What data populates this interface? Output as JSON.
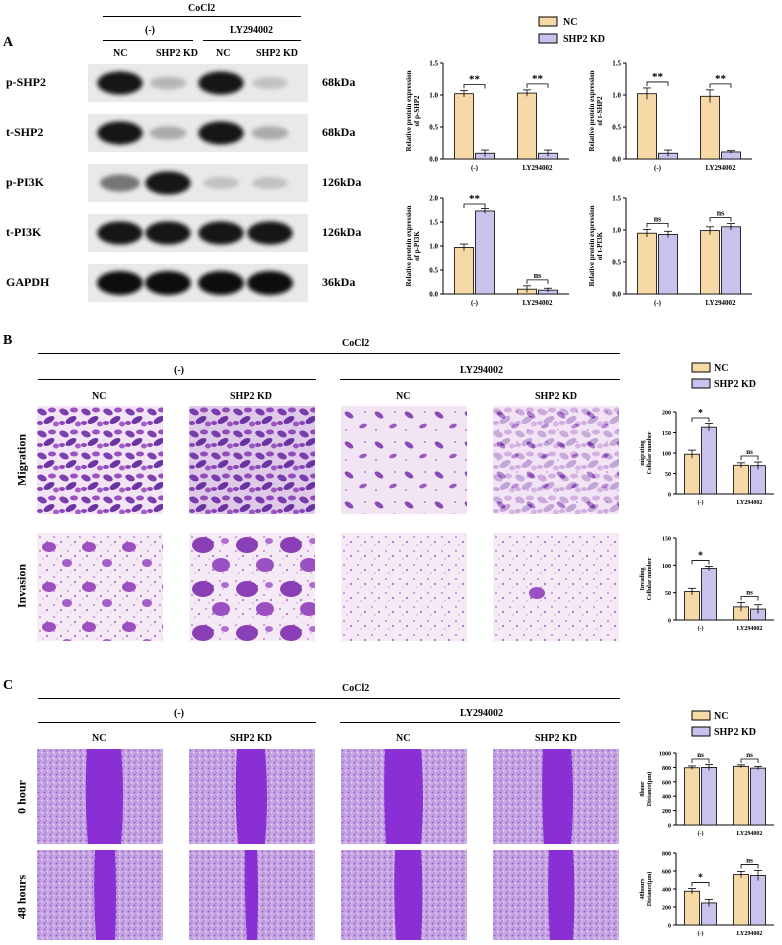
{
  "panels": {
    "A": "A",
    "B": "B",
    "C": "C"
  },
  "colors": {
    "nc": "#f7d9a8",
    "kd": "#c7c3ec",
    "bar_stroke": "#000000",
    "blot_dark": "#111111"
  },
  "panel_a": {
    "treatment": "CoCl2",
    "groups": [
      "(-)",
      "LY294002"
    ],
    "lanes": [
      "NC",
      "SHP2 KD",
      "NC",
      "SHP2 KD"
    ],
    "proteins": [
      {
        "name": "p-SHP2",
        "size": "68kDa",
        "intensity": [
          0.95,
          0.2,
          0.95,
          0.15
        ]
      },
      {
        "name": "t-SHP2",
        "size": "68kDa",
        "intensity": [
          0.95,
          0.25,
          0.95,
          0.25
        ]
      },
      {
        "name": "p-PI3K",
        "size": "126kDa",
        "intensity": [
          0.5,
          0.95,
          0.15,
          0.15
        ]
      },
      {
        "name": "t-PI3K",
        "size": "126kDa",
        "intensity": [
          0.95,
          0.95,
          0.95,
          0.95
        ]
      },
      {
        "name": "GAPDH",
        "size": "36kDa",
        "intensity": [
          1,
          1,
          1,
          1
        ]
      }
    ]
  },
  "legend": {
    "nc": "NC",
    "kd": "SHP2 KD"
  },
  "chart_data": [
    {
      "type": "bar",
      "categories": [
        "(-)",
        "LY294002"
      ],
      "series": [
        {
          "name": "NC",
          "values": [
            1.02,
            1.03
          ],
          "errors": [
            0.05,
            0.05
          ]
        },
        {
          "name": "SHP2 KD",
          "values": [
            0.09,
            0.09
          ],
          "errors": [
            0.05,
            0.05
          ]
        }
      ],
      "ylabel": "Relative protein expression of p-SHP2",
      "ylim": [
        0,
        1.5
      ],
      "yticks": [
        0,
        0.5,
        1.0,
        1.5
      ],
      "yticklabels": [
        "0.0",
        "0.5",
        "1.0",
        "1.5"
      ],
      "significance": [
        "**",
        "**"
      ]
    },
    {
      "type": "bar",
      "categories": [
        "(-)",
        "LY294002"
      ],
      "series": [
        {
          "name": "NC",
          "values": [
            1.02,
            0.98
          ],
          "errors": [
            0.09,
            0.1
          ]
        },
        {
          "name": "SHP2 KD",
          "values": [
            0.09,
            0.11
          ],
          "errors": [
            0.05,
            0.02
          ]
        }
      ],
      "ylabel": "Relative protein expression of t-SHP2",
      "ylim": [
        0,
        1.5
      ],
      "yticks": [
        0,
        0.5,
        1.0,
        1.5
      ],
      "yticklabels": [
        "0.0",
        "0.5",
        "1.0",
        "1.5"
      ],
      "significance": [
        "**",
        "**"
      ]
    },
    {
      "type": "bar",
      "categories": [
        "(-)",
        "LY294002"
      ],
      "series": [
        {
          "name": "NC",
          "values": [
            0.97,
            0.1
          ],
          "errors": [
            0.07,
            0.07
          ]
        },
        {
          "name": "SHP2 KD",
          "values": [
            1.73,
            0.08
          ],
          "errors": [
            0.05,
            0.04
          ]
        }
      ],
      "ylabel": "Relative protein expression of p-PI3K",
      "ylim": [
        0,
        2.0
      ],
      "yticks": [
        0,
        0.5,
        1.0,
        1.5,
        2.0
      ],
      "yticklabels": [
        "0.0",
        "0.5",
        "1.0",
        "1.5",
        "2.0"
      ],
      "significance": [
        "**",
        "ns"
      ]
    },
    {
      "type": "bar",
      "categories": [
        "(-)",
        "LY294002"
      ],
      "series": [
        {
          "name": "NC",
          "values": [
            0.95,
            0.99
          ],
          "errors": [
            0.06,
            0.06
          ]
        },
        {
          "name": "SHP2 KD",
          "values": [
            0.93,
            1.05
          ],
          "errors": [
            0.05,
            0.05
          ]
        }
      ],
      "ylabel": "Relative protein expression of t-PI3K",
      "ylim": [
        0,
        1.5
      ],
      "yticks": [
        0,
        0.5,
        1.0,
        1.5
      ],
      "yticklabels": [
        "0.0",
        "0.5",
        "1.0",
        "1.5"
      ],
      "significance": [
        "ns",
        "ns"
      ]
    },
    {
      "type": "bar",
      "categories": [
        "(-)",
        "LY294002"
      ],
      "series": [
        {
          "name": "NC",
          "values": [
            97,
            70
          ],
          "errors": [
            10,
            6
          ]
        },
        {
          "name": "SHP2 KD",
          "values": [
            163,
            69
          ],
          "errors": [
            9,
            9
          ]
        }
      ],
      "ylabel": "migrating Cellular number",
      "ylim": [
        0,
        200
      ],
      "yticks": [
        0,
        50,
        100,
        150,
        200
      ],
      "yticklabels": [
        "0",
        "50",
        "100",
        "150",
        "200"
      ],
      "significance": [
        "*",
        "ns"
      ]
    },
    {
      "type": "bar",
      "categories": [
        "(-)",
        "LY294002"
      ],
      "series": [
        {
          "name": "NC",
          "values": [
            52,
            24
          ],
          "errors": [
            6,
            8
          ]
        },
        {
          "name": "SHP2 KD",
          "values": [
            94,
            20
          ],
          "errors": [
            4,
            8
          ]
        }
      ],
      "ylabel": "Invading Cellular number",
      "ylim": [
        0,
        150
      ],
      "yticks": [
        0,
        50,
        100,
        150
      ],
      "yticklabels": [
        "0",
        "50",
        "100",
        "150"
      ],
      "significance": [
        "*",
        "ns"
      ]
    },
    {
      "type": "bar",
      "categories": [
        "(-)",
        "LY294002"
      ],
      "series": [
        {
          "name": "NC",
          "values": [
            795,
            815
          ],
          "errors": [
            25,
            20
          ]
        },
        {
          "name": "SHP2 KD",
          "values": [
            800,
            790
          ],
          "errors": [
            40,
            25
          ]
        }
      ],
      "ylabel": "0hour Distance(μm)",
      "ylim": [
        0,
        1000
      ],
      "yticks": [
        0,
        200,
        400,
        600,
        800,
        1000
      ],
      "yticklabels": [
        "0",
        "200",
        "400",
        "600",
        "800",
        "1000"
      ],
      "significance": [
        "ns",
        "ns"
      ]
    },
    {
      "type": "bar",
      "categories": [
        "(-)",
        "LY294002"
      ],
      "series": [
        {
          "name": "NC",
          "values": [
            375,
            560
          ],
          "errors": [
            30,
            35
          ]
        },
        {
          "name": "SHP2 KD",
          "values": [
            245,
            550
          ],
          "errors": [
            40,
            55
          ]
        }
      ],
      "ylabel": "48hours Distance(μm)",
      "ylim": [
        0,
        800
      ],
      "yticks": [
        0,
        200,
        400,
        600,
        800
      ],
      "yticklabels": [
        "0",
        "200",
        "400",
        "600",
        "800"
      ],
      "significance": [
        "*",
        "ns"
      ]
    }
  ],
  "panel_b": {
    "treatment": "CoCl2",
    "groups": [
      "(-)",
      "LY294002"
    ],
    "columns": [
      "NC",
      "SHP2 KD",
      "NC",
      "SHP2 KD"
    ],
    "rows": [
      "Migration",
      "Invasion"
    ]
  },
  "panel_c": {
    "treatment": "CoCl2",
    "groups": [
      "(-)",
      "LY294002"
    ],
    "columns": [
      "NC",
      "SHP2 KD",
      "NC",
      "SHP2 KD"
    ],
    "rows": [
      "0 hour",
      "48 hours"
    ]
  }
}
